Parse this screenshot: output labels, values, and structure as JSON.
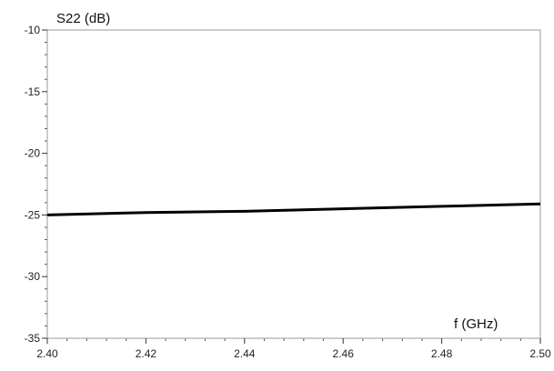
{
  "chart_data": {
    "type": "line",
    "title": "",
    "xlabel": "f (GHz)",
    "ylabel": "S22 (dB)",
    "xlim": [
      2.4,
      2.5
    ],
    "ylim": [
      -35,
      -10
    ],
    "x_ticks": [
      "2.40",
      "2.42",
      "2.44",
      "2.46",
      "2.48",
      "2.50"
    ],
    "y_ticks": [
      "-10",
      "-15",
      "-20",
      "-25",
      "-30",
      "-35"
    ],
    "grid": true,
    "legend": "none",
    "series": [
      {
        "x": [
          2.4,
          2.42,
          2.44,
          2.46,
          2.48,
          2.5
        ],
        "y": [
          -25.0,
          -24.8,
          -24.7,
          -24.5,
          -24.3,
          -24.1
        ],
        "color": "#000000"
      }
    ]
  }
}
